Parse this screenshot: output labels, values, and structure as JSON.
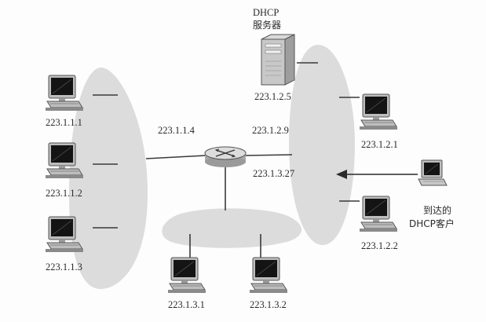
{
  "diagram": {
    "server": {
      "title": "DHCP",
      "subtitle": "服务器",
      "address": "223.1.2.5"
    },
    "router_ports": {
      "left": "223.1.1.4",
      "right": "223.1.2.9",
      "bottom": "223.1.3.27"
    },
    "hosts_left": [
      "223.1.1.1",
      "223.1.1.2",
      "223.1.1.3"
    ],
    "hosts_right": [
      "223.1.2.1",
      "223.1.2.2"
    ],
    "hosts_bottom": [
      "223.1.3.1",
      "223.1.3.2"
    ],
    "arriving_client": {
      "line1": "到达的",
      "line2": "DHCP客户"
    },
    "colors": {
      "subnet_fill": "#dcdcdc",
      "link": "#3a3a3a",
      "monitor_screen": "#111111",
      "router": "#cfcfcf"
    }
  }
}
